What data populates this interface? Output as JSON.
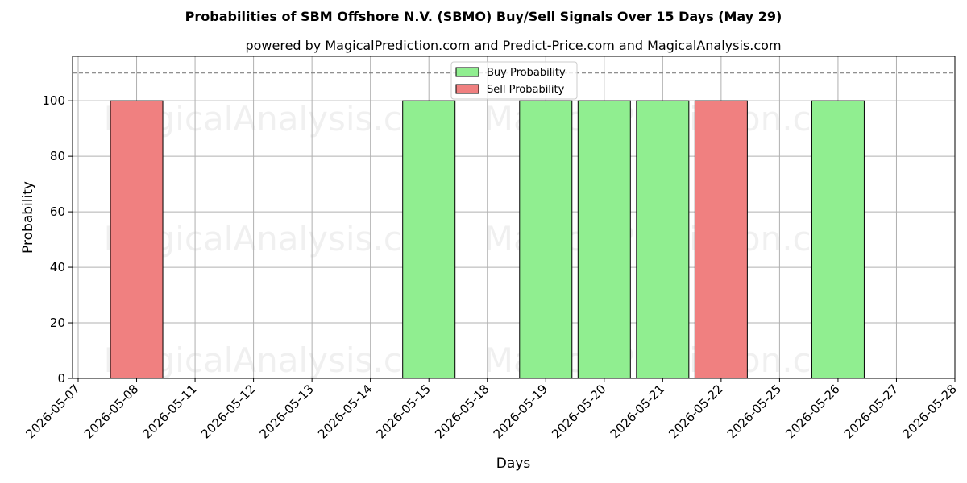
{
  "chart_data": {
    "type": "bar",
    "title": "Probabilities of SBM Offshore N.V. (SBMO) Buy/Sell Signals Over 15 Days (May 29)",
    "subtitle": "powered by MagicalPrediction.com and Predict-Price.com and MagicalAnalysis.com",
    "xlabel": "Days",
    "ylabel": "Probability",
    "ylim": [
      0,
      116
    ],
    "yticks": [
      0,
      20,
      40,
      60,
      80,
      100
    ],
    "threshold_line": 110,
    "grid": true,
    "legend_position": "top-center",
    "x_tick_labels": [
      "2026-05-07",
      "2026-05-08",
      "2026-05-11",
      "2026-05-12",
      "2026-05-13",
      "2026-05-14",
      "2026-05-15",
      "2026-05-18",
      "2026-05-19",
      "2026-05-20",
      "2026-05-21",
      "2026-05-22",
      "2026-05-25",
      "2026-05-26",
      "2026-05-27",
      "2026-05-28"
    ],
    "series": [
      {
        "name": "Buy Probability",
        "color": "#90ee90",
        "points": [
          {
            "x": "2026-05-15",
            "y": 100
          },
          {
            "x": "2026-05-19",
            "y": 100
          },
          {
            "x": "2026-05-20",
            "y": 100
          },
          {
            "x": "2026-05-21",
            "y": 100
          },
          {
            "x": "2026-05-26",
            "y": 100
          }
        ]
      },
      {
        "name": "Sell Probability",
        "color": "#f08080",
        "points": [
          {
            "x": "2026-05-08",
            "y": 100
          },
          {
            "x": "2026-05-22",
            "y": 100
          }
        ]
      }
    ],
    "watermarks": [
      "MagicalAnalysis.com",
      "MagicalPrediction.com"
    ]
  }
}
